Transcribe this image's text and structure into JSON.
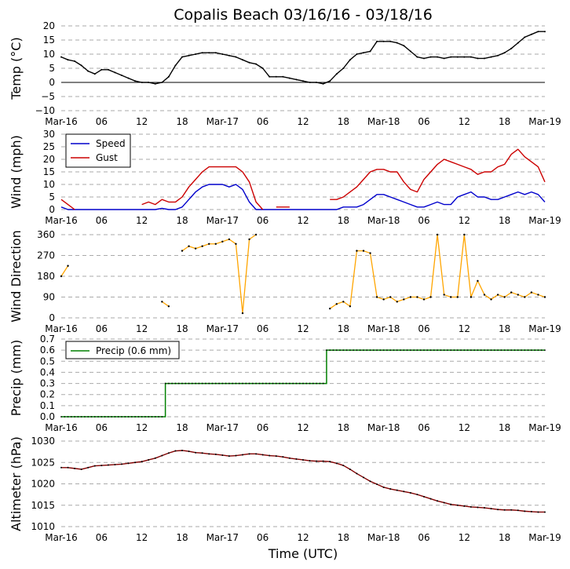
{
  "title": "Copalis Beach 03/16/16 - 03/18/16",
  "xlabel": "Time (UTC)",
  "x_tick_labels": [
    "Mar-16",
    "06",
    "12",
    "18",
    "Mar-17",
    "06",
    "12",
    "18",
    "Mar-18",
    "06",
    "12",
    "18",
    "Mar-19"
  ],
  "colors": {
    "temp": "#000000",
    "speed": "#0000cc",
    "gust": "#cc0000",
    "direction": "#ffa500",
    "precip": "#008000",
    "altimeter": "#800000",
    "grid": "#aaaaaa"
  },
  "chart_data": [
    {
      "type": "line",
      "ylabel": "Temp (°C)",
      "ylim": [
        -10,
        20
      ],
      "yticks": [
        -10,
        -5,
        0,
        5,
        10,
        15,
        20
      ],
      "zero_line": true,
      "grid": "horizontal dashed",
      "series": [
        {
          "key": "temp",
          "x_hours": [
            0,
            1,
            2,
            3,
            4,
            5,
            6,
            7,
            8,
            9,
            10,
            11,
            12,
            13,
            14,
            15,
            16,
            17,
            18,
            19,
            20,
            21,
            22,
            23,
            24,
            25,
            26,
            27,
            28,
            29,
            30,
            31,
            32,
            33,
            34,
            35,
            36,
            37,
            38,
            39,
            40,
            41,
            42,
            43,
            44,
            45,
            46,
            47,
            48,
            49,
            50,
            51,
            52,
            53,
            54,
            55,
            56,
            57,
            58,
            59,
            60,
            61,
            62,
            63,
            64,
            65,
            66,
            67,
            68,
            69,
            70,
            71,
            72
          ],
          "values": [
            9,
            8,
            7.5,
            6,
            4,
            3,
            4.5,
            4.5,
            3.5,
            2.5,
            1.5,
            0.5,
            0,
            0,
            -0.5,
            0,
            2,
            6,
            9,
            9.5,
            10,
            10.5,
            10.5,
            10.5,
            10,
            9.5,
            9,
            8,
            7,
            6.5,
            5,
            2,
            2,
            2,
            1.5,
            1,
            0.5,
            0,
            0,
            -0.5,
            0.5,
            3,
            5,
            8,
            10,
            10.5,
            11,
            14.5,
            14.5,
            14.5,
            14,
            13,
            11,
            9,
            8.5,
            9,
            9,
            8.5,
            9,
            9,
            9,
            9,
            8.5,
            8.5,
            9,
            9.5,
            10.5,
            12,
            14,
            16,
            17,
            18,
            18
          ]
        }
      ]
    },
    {
      "type": "line",
      "ylabel": "Wind (mph)",
      "ylim": [
        0,
        30
      ],
      "yticks": [
        0,
        5,
        10,
        15,
        20,
        25,
        30
      ],
      "legend": "top-left",
      "grid": "horizontal dashed",
      "series": [
        {
          "key": "speed",
          "name": "Speed",
          "x_hours": [
            0,
            1,
            2,
            3,
            4,
            5,
            6,
            7,
            8,
            9,
            10,
            11,
            12,
            13,
            14,
            15,
            16,
            17,
            18,
            19,
            20,
            21,
            22,
            23,
            24,
            25,
            26,
            27,
            28,
            29,
            30,
            31,
            32,
            33,
            34,
            35,
            36,
            37,
            38,
            39,
            40,
            41,
            42,
            43,
            44,
            45,
            46,
            47,
            48,
            49,
            50,
            51,
            52,
            53,
            54,
            55,
            56,
            57,
            58,
            59,
            60,
            61,
            62,
            63,
            64,
            65,
            66,
            67,
            68,
            69,
            70,
            71,
            72
          ],
          "values": [
            1,
            0,
            0,
            0,
            0,
            0,
            0,
            0,
            0,
            0,
            0,
            0,
            0,
            0,
            0,
            0.5,
            0,
            0,
            1,
            4,
            7,
            9,
            10,
            10,
            10,
            9,
            10,
            8,
            3,
            0,
            0,
            0,
            0,
            0,
            0,
            0,
            0,
            0,
            0,
            0,
            0,
            0,
            1,
            1,
            1,
            2,
            4,
            6,
            6,
            5,
            4,
            3,
            2,
            1,
            1,
            2,
            3,
            2,
            2,
            5,
            6,
            7,
            5,
            5,
            4,
            4,
            5,
            6,
            7,
            6,
            7,
            6,
            3
          ]
        },
        {
          "key": "gust",
          "name": "Gust",
          "x_hours": [
            0,
            1,
            2,
            3,
            4,
            5,
            6,
            7,
            8,
            9,
            10,
            11,
            12,
            13,
            14,
            15,
            16,
            17,
            18,
            19,
            20,
            21,
            22,
            23,
            24,
            25,
            26,
            27,
            28,
            29,
            30,
            31,
            32,
            33,
            34,
            35,
            36,
            37,
            38,
            39,
            40,
            41,
            42,
            43,
            44,
            45,
            46,
            47,
            48,
            49,
            50,
            51,
            52,
            53,
            54,
            55,
            56,
            57,
            58,
            59,
            60,
            61,
            62,
            63,
            64,
            65,
            66,
            67,
            68,
            69,
            70,
            71,
            72
          ],
          "values": [
            4,
            2,
            0,
            null,
            null,
            null,
            null,
            null,
            null,
            null,
            null,
            null,
            2,
            3,
            2,
            4,
            3,
            3,
            5,
            9,
            12,
            15,
            17,
            17,
            17,
            17,
            17,
            15,
            11,
            3,
            0,
            null,
            1,
            1,
            1,
            null,
            null,
            null,
            null,
            null,
            4,
            4,
            5,
            7,
            9,
            12,
            15,
            16,
            16,
            15,
            15,
            11,
            8,
            7,
            12,
            15,
            18,
            20,
            19,
            18,
            17,
            16,
            14,
            15,
            15,
            17,
            18,
            22,
            24,
            21,
            19,
            17,
            11
          ]
        }
      ]
    },
    {
      "type": "scatter",
      "ylabel": "Wind Direction",
      "ylim": [
        0,
        360
      ],
      "yticks": [
        0,
        90,
        180,
        270,
        360
      ],
      "grid": "horizontal dashed",
      "series": [
        {
          "key": "direction",
          "x_hours": [
            0,
            1,
            2,
            3,
            4,
            5,
            6,
            7,
            8,
            9,
            10,
            11,
            12,
            13,
            14,
            15,
            16,
            17,
            18,
            19,
            20,
            21,
            22,
            23,
            24,
            25,
            26,
            27,
            28,
            29,
            30,
            31,
            32,
            33,
            34,
            35,
            36,
            37,
            38,
            39,
            40,
            41,
            42,
            43,
            44,
            45,
            46,
            47,
            48,
            49,
            50,
            51,
            52,
            53,
            54,
            55,
            56,
            57,
            58,
            59,
            60,
            61,
            62,
            63,
            64,
            65,
            66,
            67,
            68,
            69,
            70,
            71,
            72
          ],
          "values": [
            180,
            225,
            null,
            null,
            null,
            null,
            null,
            null,
            null,
            null,
            null,
            null,
            null,
            null,
            null,
            70,
            50,
            null,
            290,
            310,
            300,
            310,
            320,
            320,
            330,
            340,
            320,
            20,
            340,
            360,
            null,
            null,
            null,
            null,
            null,
            null,
            null,
            null,
            null,
            null,
            40,
            60,
            70,
            50,
            290,
            290,
            280,
            90,
            80,
            90,
            70,
            80,
            90,
            90,
            80,
            90,
            360,
            100,
            90,
            90,
            360,
            90,
            160,
            100,
            80,
            100,
            90,
            110,
            100,
            90,
            110,
            100,
            90
          ]
        }
      ]
    },
    {
      "type": "line",
      "ylabel": "Precip (mm)",
      "ylim": [
        0,
        0.7
      ],
      "yticks": [
        0.0,
        0.1,
        0.2,
        0.3,
        0.4,
        0.5,
        0.6,
        0.7
      ],
      "legend": "top-left",
      "grid": "horizontal dashed",
      "series": [
        {
          "key": "precip",
          "name": "Precip (0.6 mm)",
          "steps": [
            [
              0,
              0
            ],
            [
              15.5,
              0
            ],
            [
              15.5,
              0.3
            ],
            [
              39.5,
              0.3
            ],
            [
              39.5,
              0.6
            ],
            [
              72,
              0.6
            ]
          ]
        }
      ]
    },
    {
      "type": "line",
      "ylabel": "Altimeter (hPa)",
      "ylim": [
        1010,
        1030
      ],
      "yticks": [
        1010,
        1015,
        1020,
        1025,
        1030
      ],
      "grid": "horizontal dashed",
      "series": [
        {
          "key": "altimeter",
          "x_hours": [
            0,
            1,
            2,
            3,
            4,
            5,
            6,
            7,
            8,
            9,
            10,
            11,
            12,
            13,
            14,
            15,
            16,
            17,
            18,
            19,
            20,
            21,
            22,
            23,
            24,
            25,
            26,
            27,
            28,
            29,
            30,
            31,
            32,
            33,
            34,
            35,
            36,
            37,
            38,
            39,
            40,
            41,
            42,
            43,
            44,
            45,
            46,
            47,
            48,
            49,
            50,
            51,
            52,
            53,
            54,
            55,
            56,
            57,
            58,
            59,
            60,
            61,
            62,
            63,
            64,
            65,
            66,
            67,
            68,
            69,
            70,
            71,
            72
          ],
          "values": [
            1023.8,
            1023.8,
            1023.6,
            1023.4,
            1023.8,
            1024.2,
            1024.3,
            1024.4,
            1024.5,
            1024.6,
            1024.8,
            1025.0,
            1025.2,
            1025.6,
            1026.0,
            1026.6,
            1027.2,
            1027.7,
            1027.8,
            1027.6,
            1027.3,
            1027.2,
            1027.0,
            1026.9,
            1026.7,
            1026.5,
            1026.6,
            1026.8,
            1027.0,
            1027.0,
            1026.8,
            1026.6,
            1026.5,
            1026.3,
            1026.0,
            1025.8,
            1025.6,
            1025.4,
            1025.3,
            1025.3,
            1025.2,
            1024.8,
            1024.3,
            1023.4,
            1022.4,
            1021.5,
            1020.6,
            1019.9,
            1019.2,
            1018.8,
            1018.5,
            1018.2,
            1017.9,
            1017.5,
            1017.0,
            1016.5,
            1016.0,
            1015.6,
            1015.2,
            1015.0,
            1014.8,
            1014.6,
            1014.5,
            1014.4,
            1014.2,
            1014.0,
            1013.9,
            1013.9,
            1013.8,
            1013.6,
            1013.5,
            1013.4,
            1013.4
          ]
        }
      ]
    }
  ]
}
